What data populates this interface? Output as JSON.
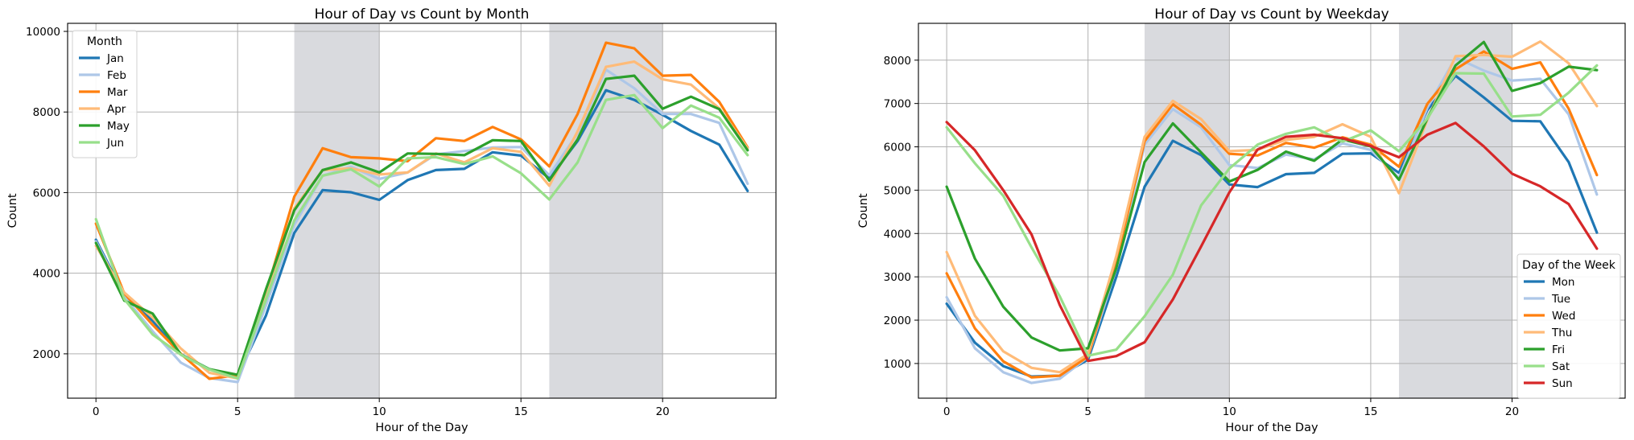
{
  "chart_data": [
    {
      "type": "line",
      "title": "Hour of Day vs Count by Month",
      "xlabel": "Hour of the Day",
      "ylabel": "Count",
      "xlim": [
        -1,
        24
      ],
      "ylim": [
        900,
        10200
      ],
      "xticks": [
        0,
        5,
        10,
        15,
        20
      ],
      "yticks": [
        2000,
        4000,
        6000,
        8000,
        10000
      ],
      "grid": true,
      "shaded_ranges": [
        [
          7,
          10
        ],
        [
          16,
          20
        ]
      ],
      "legend": {
        "title": "Month",
        "placement": "upper-left"
      },
      "x": [
        0,
        1,
        2,
        3,
        4,
        5,
        6,
        7,
        8,
        9,
        10,
        11,
        12,
        13,
        14,
        15,
        16,
        17,
        18,
        19,
        20,
        21,
        22,
        23
      ],
      "series": [
        {
          "name": "Jan",
          "color": "#1f77b4",
          "values": [
            4830,
            3450,
            2820,
            1990,
            1620,
            1450,
            2950,
            5000,
            6060,
            6010,
            5820,
            6310,
            6560,
            6590,
            7000,
            6920,
            6350,
            7280,
            8540,
            8300,
            7930,
            7530,
            7190,
            6040
          ]
        },
        {
          "name": "Feb",
          "color": "#aec7e8",
          "values": [
            4790,
            3410,
            2560,
            1780,
            1400,
            1300,
            3200,
            5200,
            6420,
            6640,
            6340,
            6500,
            6950,
            7030,
            7120,
            7130,
            6430,
            7470,
            9050,
            8590,
            7950,
            7950,
            7730,
            6220
          ]
        },
        {
          "name": "Mar",
          "color": "#ff7f0e",
          "values": [
            5230,
            3500,
            2720,
            2000,
            1380,
            1470,
            3500,
            5900,
            7100,
            6880,
            6850,
            6780,
            7350,
            7280,
            7630,
            7320,
            6650,
            7950,
            9720,
            9580,
            8900,
            8920,
            8250,
            7120
          ]
        },
        {
          "name": "Apr",
          "color": "#ffbb78",
          "values": [
            4680,
            3520,
            2900,
            2130,
            1530,
            1390,
            3430,
            5610,
            6560,
            6600,
            6450,
            6500,
            6970,
            6750,
            7100,
            7010,
            6170,
            7520,
            9120,
            9250,
            8810,
            8680,
            8090,
            7100
          ]
        },
        {
          "name": "May",
          "color": "#2ca02c",
          "values": [
            4750,
            3320,
            3000,
            1980,
            1620,
            1480,
            3600,
            5560,
            6560,
            6750,
            6500,
            6970,
            6960,
            6930,
            7300,
            7280,
            6300,
            7320,
            8820,
            8900,
            8080,
            8380,
            8070,
            7050
          ]
        },
        {
          "name": "Jun",
          "color": "#98df8a",
          "values": [
            5340,
            3360,
            2480,
            1980,
            1610,
            1390,
            3340,
            5310,
            6420,
            6580,
            6150,
            6850,
            6880,
            6710,
            6900,
            6480,
            5830,
            6750,
            8300,
            8420,
            7600,
            8160,
            7860,
            6930
          ]
        }
      ]
    },
    {
      "type": "line",
      "title": "Hour of Day vs Count by Weekday",
      "xlabel": "Hour of the Day",
      "ylabel": "Count",
      "xlim": [
        -1,
        24
      ],
      "ylim": [
        200,
        8850
      ],
      "xticks": [
        0,
        5,
        10,
        15,
        20
      ],
      "yticks": [
        1000,
        2000,
        3000,
        4000,
        5000,
        6000,
        7000,
        8000
      ],
      "grid": true,
      "shaded_ranges": [
        [
          7,
          10
        ],
        [
          16,
          20
        ]
      ],
      "legend": {
        "title": "Day of the Week",
        "placement": "lower-right"
      },
      "x": [
        0,
        1,
        2,
        3,
        4,
        5,
        6,
        7,
        8,
        9,
        10,
        11,
        12,
        13,
        14,
        15,
        16,
        17,
        18,
        19,
        20,
        21,
        22,
        23
      ],
      "series": [
        {
          "name": "Mon",
          "color": "#1f77b4",
          "values": [
            2380,
            1480,
            940,
            700,
            720,
            1090,
            3000,
            5080,
            6140,
            5810,
            5130,
            5070,
            5370,
            5400,
            5840,
            5850,
            5400,
            6850,
            7640,
            7140,
            6600,
            6590,
            5650,
            4020
          ]
        },
        {
          "name": "Tue",
          "color": "#aec7e8",
          "values": [
            2530,
            1350,
            800,
            550,
            650,
            1150,
            3200,
            6050,
            6870,
            6450,
            5580,
            5510,
            5820,
            5710,
            6080,
            5930,
            5280,
            6900,
            8060,
            7760,
            7530,
            7570,
            6750,
            4900
          ]
        },
        {
          "name": "Wed",
          "color": "#ff7f0e",
          "values": [
            3080,
            1810,
            1050,
            680,
            720,
            1160,
            3350,
            6130,
            6980,
            6510,
            5840,
            5800,
            6090,
            5980,
            6220,
            6050,
            5540,
            6990,
            7790,
            8200,
            7800,
            7950,
            6880,
            5350
          ]
        },
        {
          "name": "Thu",
          "color": "#ffbb78",
          "values": [
            3570,
            2100,
            1280,
            900,
            800,
            1220,
            3480,
            6230,
            7060,
            6640,
            5900,
            5930,
            6160,
            6230,
            6520,
            6230,
            4930,
            6620,
            8090,
            8120,
            8080,
            8430,
            7930,
            6940
          ]
        },
        {
          "name": "Fri",
          "color": "#2ca02c",
          "values": [
            5080,
            3420,
            2310,
            1600,
            1300,
            1350,
            3200,
            5650,
            6540,
            5870,
            5200,
            5470,
            5890,
            5680,
            6170,
            6010,
            5240,
            6650,
            7880,
            8420,
            7290,
            7470,
            7850,
            7770
          ]
        },
        {
          "name": "Sat",
          "color": "#98df8a",
          "values": [
            6450,
            5620,
            4870,
            3680,
            2550,
            1180,
            1320,
            2090,
            3050,
            4650,
            5500,
            6050,
            6300,
            6450,
            6120,
            6380,
            5900,
            6650,
            7700,
            7690,
            6700,
            6740,
            7250,
            7880
          ]
        },
        {
          "name": "Sun",
          "color": "#d62728",
          "values": [
            6570,
            5920,
            5000,
            3980,
            2350,
            1060,
            1170,
            1490,
            2480,
            3700,
            4950,
            5940,
            6230,
            6280,
            6200,
            6020,
            5760,
            6280,
            6550,
            6010,
            5380,
            5090,
            4680,
            3650
          ]
        }
      ]
    }
  ]
}
